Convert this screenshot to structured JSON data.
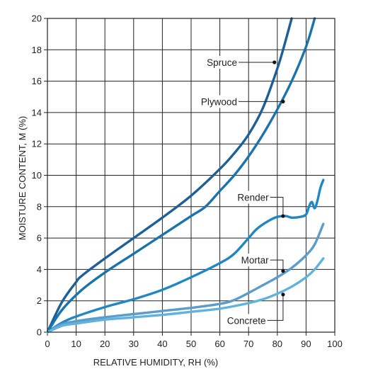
{
  "chart_data": {
    "type": "line",
    "title": "",
    "xlabel": "RELATIVE HUMIDITY, RH (%)",
    "ylabel": "MOISTURE CONTENT, M (%)",
    "xlim": [
      0,
      100
    ],
    "ylim": [
      0,
      20
    ],
    "xticks": [
      "0",
      "10",
      "20",
      "30",
      "40",
      "50",
      "60",
      "70",
      "80",
      "90",
      "100"
    ],
    "yticks": [
      "0",
      "2",
      "4",
      "6",
      "8",
      "10",
      "12",
      "14",
      "16",
      "18",
      "20"
    ],
    "grid": true,
    "legend": "inline labels with leader lines",
    "series": [
      {
        "name": "Spruce",
        "color": "#1d5f96",
        "points": [
          [
            0,
            0
          ],
          [
            5,
            1.9
          ],
          [
            10,
            3.2
          ],
          [
            12,
            3.6
          ],
          [
            20,
            4.7
          ],
          [
            30,
            6.0
          ],
          [
            40,
            7.3
          ],
          [
            50,
            8.7
          ],
          [
            60,
            10.4
          ],
          [
            65,
            11.4
          ],
          [
            70,
            12.6
          ],
          [
            75,
            14.3
          ],
          [
            80,
            16.8
          ],
          [
            82,
            18.0
          ],
          [
            85,
            20.0
          ]
        ],
        "marker": [
          79,
          17.2
        ],
        "label_at": [
          66,
          17.2
        ]
      },
      {
        "name": "Plywood",
        "color": "#1a74ab",
        "points": [
          [
            0,
            0
          ],
          [
            5,
            1.4
          ],
          [
            12,
            2.7
          ],
          [
            20,
            3.8
          ],
          [
            30,
            5.0
          ],
          [
            40,
            6.2
          ],
          [
            50,
            7.4
          ],
          [
            55,
            8.0
          ],
          [
            60,
            9.0
          ],
          [
            65,
            10.0
          ],
          [
            70,
            11.2
          ],
          [
            75,
            12.6
          ],
          [
            80,
            14.2
          ],
          [
            85,
            16.0
          ],
          [
            90,
            18.2
          ],
          [
            93,
            20.0
          ]
        ],
        "marker": [
          82,
          14.7
        ],
        "label_at": [
          66,
          14.7
        ]
      },
      {
        "name": "Render",
        "color": "#2186c4",
        "points": [
          [
            0,
            0
          ],
          [
            5,
            0.6
          ],
          [
            10,
            1.0
          ],
          [
            20,
            1.6
          ],
          [
            30,
            2.1
          ],
          [
            40,
            2.7
          ],
          [
            50,
            3.5
          ],
          [
            60,
            4.4
          ],
          [
            65,
            5.0
          ],
          [
            70,
            6.0
          ],
          [
            73,
            6.6
          ],
          [
            77,
            7.1
          ],
          [
            80,
            7.35
          ],
          [
            83,
            7.4
          ],
          [
            85,
            7.3
          ],
          [
            88,
            7.35
          ],
          [
            90,
            7.5
          ],
          [
            91,
            8.0
          ],
          [
            92,
            8.3
          ],
          [
            93,
            7.9
          ],
          [
            94,
            8.4
          ],
          [
            95,
            9.2
          ],
          [
            96,
            9.7
          ]
        ],
        "marker": [
          82,
          7.4
        ],
        "label_at": [
          77,
          8.6
        ]
      },
      {
        "name": "Mortar",
        "color": "#5b9ccb",
        "points": [
          [
            0,
            0
          ],
          [
            5,
            0.5
          ],
          [
            10,
            0.7
          ],
          [
            20,
            0.95
          ],
          [
            30,
            1.15
          ],
          [
            40,
            1.35
          ],
          [
            50,
            1.55
          ],
          [
            60,
            1.8
          ],
          [
            65,
            2.05
          ],
          [
            70,
            2.5
          ],
          [
            75,
            3.0
          ],
          [
            80,
            3.5
          ],
          [
            85,
            4.1
          ],
          [
            90,
            4.9
          ],
          [
            93,
            5.6
          ],
          [
            96,
            6.9
          ]
        ],
        "marker": [
          82,
          3.9
        ],
        "label_at": [
          77,
          4.6
        ]
      },
      {
        "name": "Concrete",
        "color": "#5fb3dd",
        "points": [
          [
            0,
            0
          ],
          [
            5,
            0.4
          ],
          [
            10,
            0.55
          ],
          [
            20,
            0.8
          ],
          [
            30,
            0.95
          ],
          [
            40,
            1.1
          ],
          [
            50,
            1.3
          ],
          [
            60,
            1.5
          ],
          [
            70,
            1.85
          ],
          [
            75,
            2.1
          ],
          [
            80,
            2.45
          ],
          [
            85,
            2.9
          ],
          [
            90,
            3.5
          ],
          [
            93,
            4.0
          ],
          [
            96,
            4.7
          ]
        ],
        "marker": [
          82,
          2.4
        ],
        "label_at": [
          76,
          0.75
        ]
      }
    ]
  }
}
